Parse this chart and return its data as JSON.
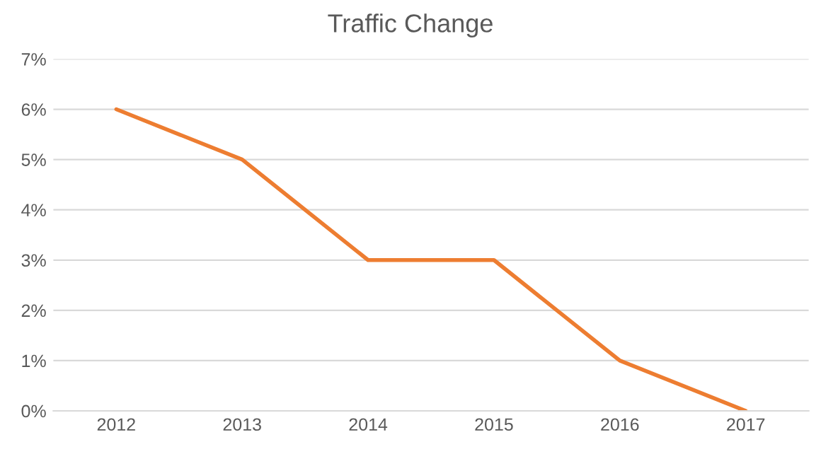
{
  "chart_data": {
    "type": "line",
    "title": "Traffic Change",
    "categories": [
      "2012",
      "2013",
      "2014",
      "2015",
      "2016",
      "2017"
    ],
    "series": [
      {
        "color": "#ed7d31",
        "values": [
          6,
          5,
          3,
          3,
          1,
          0
        ]
      }
    ],
    "ylim": [
      0,
      7
    ],
    "yticks": [
      {
        "value": 0,
        "label": "0%"
      },
      {
        "value": 1,
        "label": "1%"
      },
      {
        "value": 2,
        "label": "2%"
      },
      {
        "value": 3,
        "label": "3%"
      },
      {
        "value": 4,
        "label": "4%"
      },
      {
        "value": 5,
        "label": "5%"
      },
      {
        "value": 6,
        "label": "6%"
      },
      {
        "value": 7,
        "label": "7%"
      }
    ],
    "grid": "y",
    "marker": "none",
    "line_style": "solid",
    "legend": false
  }
}
